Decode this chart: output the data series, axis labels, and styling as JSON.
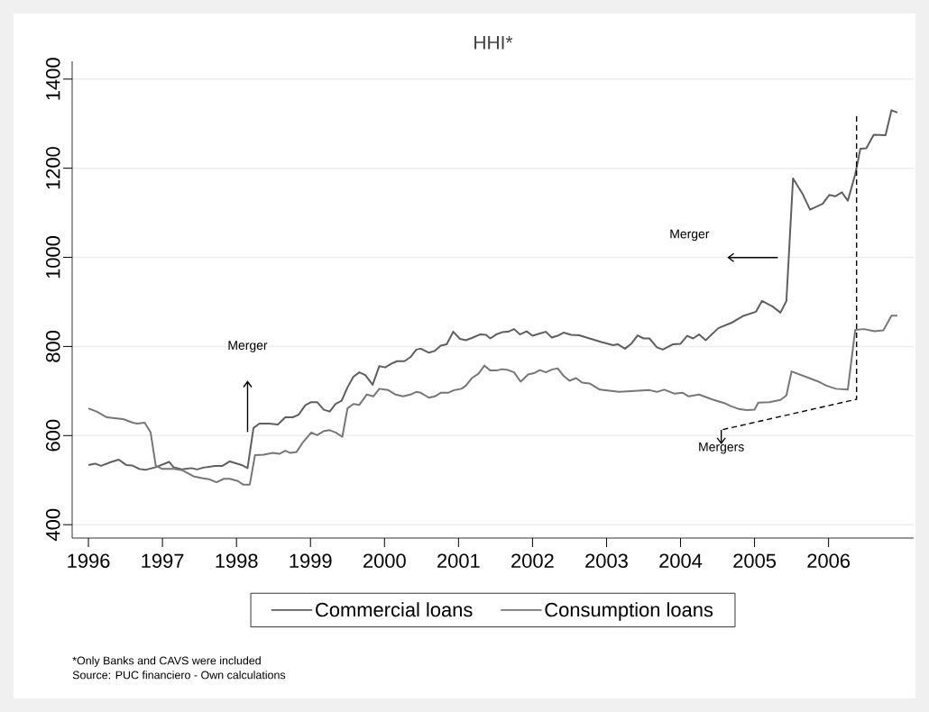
{
  "chart_data": {
    "type": "line",
    "title": "HHI*",
    "xlim": [
      1995.78,
      2007.15
    ],
    "xticks": [
      1996,
      1997,
      1998,
      1999,
      2000,
      2001,
      2002,
      2003,
      2004,
      2005,
      2006
    ],
    "ylim": [
      370,
      1440
    ],
    "yticks": [
      400,
      600,
      800,
      1000,
      1200,
      1400
    ],
    "grid": "y",
    "legend": "bottom",
    "line_style": "solid",
    "series": [
      {
        "name": "Commercial loans",
        "color": "#5f5f5f",
        "x": [
          1996.0,
          1996.09,
          1996.17,
          1996.31,
          1996.41,
          1996.51,
          1996.59,
          1996.69,
          1996.77,
          1996.91,
          1997.09,
          1997.15,
          1997.27,
          1997.39,
          1997.47,
          1997.55,
          1997.71,
          1997.81,
          1997.91,
          1998.07,
          1998.15,
          1998.23,
          1998.31,
          1998.44,
          1998.56,
          1998.66,
          1998.76,
          1998.84,
          1998.93,
          1999.01,
          1999.09,
          1999.18,
          1999.26,
          1999.34,
          1999.42,
          1999.5,
          1999.58,
          1999.66,
          1999.74,
          1999.84,
          1999.93,
          2000.01,
          2000.09,
          2000.17,
          2000.27,
          2000.35,
          2000.43,
          2000.49,
          2000.6,
          2000.68,
          2000.76,
          2000.84,
          2000.93,
          2001.02,
          2001.1,
          2001.18,
          2001.29,
          2001.37,
          2001.43,
          2001.51,
          2001.59,
          2001.67,
          2001.75,
          2001.83,
          2001.92,
          2002.0,
          2002.1,
          2002.18,
          2002.26,
          2002.34,
          2002.42,
          2002.52,
          2002.63,
          2002.77,
          2002.93,
          2003.09,
          2003.15,
          2003.25,
          2003.34,
          2003.42,
          2003.5,
          2003.58,
          2003.68,
          2003.76,
          2003.9,
          2004.0,
          2004.09,
          2004.17,
          2004.25,
          2004.34,
          2004.51,
          2004.7,
          2004.84,
          2005.02,
          2005.1,
          2005.24,
          2005.35,
          2005.43,
          2005.52,
          2005.65,
          2005.75,
          2005.92,
          2006.01,
          2006.09,
          2006.18,
          2006.26,
          2006.36,
          2006.43,
          2006.51,
          2006.61,
          2006.77,
          2006.85,
          2006.93
        ],
        "values": [
          534,
          537,
          532,
          541,
          546,
          534,
          533,
          525,
          523,
          529,
          541,
          529,
          524,
          527,
          524,
          528,
          532,
          532,
          542,
          534,
          527,
          617,
          627,
          627,
          625,
          641,
          641,
          647,
          668,
          675,
          675,
          658,
          654,
          671,
          678,
          708,
          732,
          742,
          736,
          714,
          756,
          753,
          761,
          767,
          767,
          776,
          793,
          795,
          786,
          790,
          802,
          805,
          833,
          817,
          814,
          819,
          827,
          826,
          818,
          827,
          832,
          833,
          839,
          827,
          834,
          824,
          829,
          833,
          820,
          824,
          831,
          826,
          825,
          818,
          810,
          803,
          805,
          795,
          807,
          825,
          818,
          818,
          798,
          793,
          805,
          806,
          824,
          818,
          827,
          814,
          841,
          854,
          868,
          878,
          902,
          890,
          876,
          902,
          1177,
          1142,
          1107,
          1120,
          1140,
          1137,
          1146,
          1127,
          1186,
          1244,
          1245,
          1275,
          1274,
          1330,
          1325
        ]
      },
      {
        "name": "Consumption loans",
        "color": "#777777",
        "x": [
          1996.0,
          1996.11,
          1996.25,
          1996.35,
          1996.47,
          1996.6,
          1996.66,
          1996.76,
          1996.84,
          1996.91,
          1997.0,
          1997.16,
          1997.27,
          1997.43,
          1997.55,
          1997.63,
          1997.73,
          1997.83,
          1997.91,
          1998.02,
          1998.09,
          1998.18,
          1998.25,
          1998.37,
          1998.49,
          1998.58,
          1998.66,
          1998.73,
          1998.81,
          1998.89,
          1999.01,
          1999.09,
          1999.18,
          1999.26,
          1999.34,
          1999.43,
          1999.5,
          1999.58,
          1999.66,
          1999.76,
          1999.85,
          1999.93,
          2000.05,
          2000.15,
          2000.25,
          2000.35,
          2000.43,
          2000.49,
          2000.6,
          2000.68,
          2000.76,
          2000.86,
          2000.94,
          2001.04,
          2001.1,
          2001.18,
          2001.27,
          2001.35,
          2001.43,
          2001.51,
          2001.59,
          2001.67,
          2001.75,
          2001.84,
          2001.94,
          2002.02,
          2002.1,
          2002.18,
          2002.26,
          2002.34,
          2002.42,
          2002.5,
          2002.59,
          2002.67,
          2002.77,
          2002.91,
          2003.17,
          2003.38,
          2003.58,
          2003.68,
          2003.78,
          2003.92,
          2004.03,
          2004.11,
          2004.25,
          2004.43,
          2004.59,
          2004.68,
          2004.8,
          2004.9,
          2005.0,
          2005.05,
          2005.2,
          2005.35,
          2005.43,
          2005.5,
          2005.69,
          2005.85,
          2005.97,
          2006.1,
          2006.26,
          2006.36,
          2006.48,
          2006.62,
          2006.74,
          2006.85,
          2006.93
        ],
        "values": [
          661,
          654,
          641,
          639,
          637,
          629,
          627,
          629,
          607,
          532,
          525,
          525,
          522,
          508,
          504,
          502,
          495,
          503,
          503,
          498,
          490,
          490,
          556,
          557,
          561,
          559,
          566,
          561,
          563,
          583,
          607,
          601,
          610,
          612,
          607,
          597,
          661,
          671,
          669,
          692,
          688,
          705,
          702,
          692,
          688,
          692,
          698,
          696,
          685,
          688,
          696,
          696,
          702,
          705,
          712,
          729,
          739,
          757,
          746,
          746,
          749,
          747,
          742,
          721,
          737,
          740,
          747,
          742,
          748,
          751,
          734,
          723,
          729,
          719,
          717,
          703,
          698,
          700,
          702,
          698,
          703,
          694,
          696,
          688,
          692,
          681,
          673,
          666,
          659,
          657,
          658,
          674,
          675,
          680,
          690,
          744,
          732,
          722,
          712,
          705,
          703,
          837,
          839,
          834,
          836,
          869,
          869
        ]
      }
    ],
    "annotations": [
      "Merger",
      "Merger",
      "Mergers",
      "*Only Banks and CAVS were included",
      "Source: PUC financiero - Own calculations"
    ]
  }
}
